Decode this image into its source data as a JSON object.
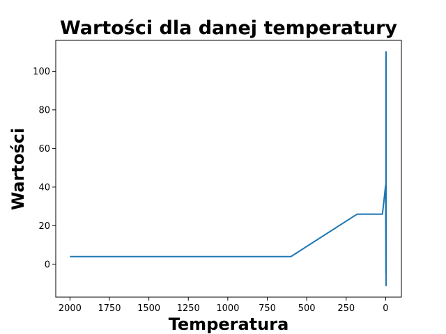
{
  "chart_data": {
    "type": "line",
    "title": "Wartości dla danej temperatury",
    "xlabel": "Temperatura",
    "ylabel": "Wartości",
    "x_inverted": true,
    "xlim": [
      2090,
      -100
    ],
    "ylim": [
      -17,
      116
    ],
    "xticks": [
      2000,
      1750,
      1500,
      1250,
      1000,
      750,
      500,
      250,
      0
    ],
    "yticks": [
      0,
      20,
      40,
      60,
      80,
      100
    ],
    "grid": false,
    "legend": "none",
    "series": [
      {
        "color": "#1f77b4",
        "x": [
          2000,
          600,
          180,
          20,
          0,
          -2,
          -2,
          -3,
          -3,
          -3,
          -3,
          -3,
          -3
        ],
        "y": [
          4,
          4,
          26,
          26,
          41,
          -5,
          110,
          -10,
          110,
          -11,
          110,
          -8,
          110
        ]
      }
    ]
  }
}
